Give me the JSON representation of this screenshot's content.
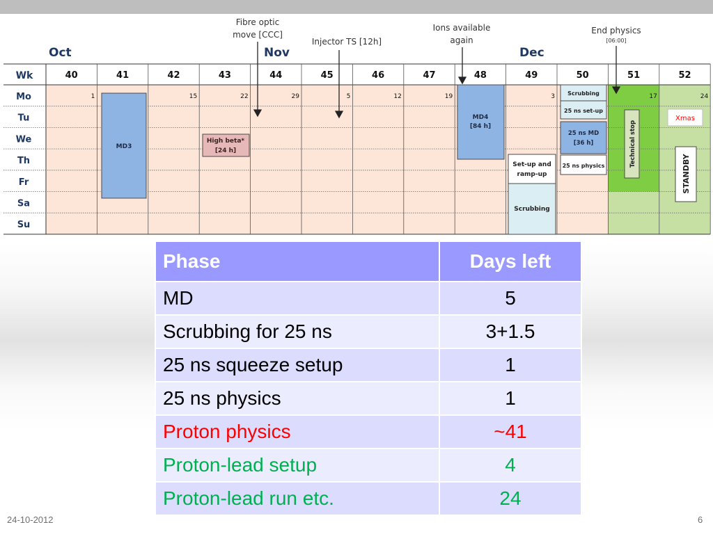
{
  "colors": {
    "week_cell": "#fde6d8",
    "dec_late_cell": "#c6e0a4",
    "technical_stop_cell": "#7fcd43",
    "md_block": "#8eb4e3",
    "high_beta_block": "#e6b9b8",
    "light_blue_block": "#dbeef4",
    "xmas": "#ff0000",
    "proton_physics": "#ff0000",
    "proton_lead": "#00b050",
    "table_header": "#9999ff"
  },
  "calendar": {
    "months": [
      "Oct",
      "Nov",
      "Dec"
    ],
    "wk_label": "Wk",
    "weeks": [
      "40",
      "41",
      "42",
      "43",
      "44",
      "45",
      "46",
      "47",
      "48",
      "49",
      "50",
      "51",
      "52"
    ],
    "days": [
      "Mo",
      "Tu",
      "We",
      "Th",
      "Fr",
      "Sa",
      "Su"
    ],
    "monday_dates": [
      "1",
      "",
      "15",
      "22",
      "29",
      "5",
      "12",
      "19",
      "",
      "3",
      "",
      "17",
      "24"
    ],
    "annotations": {
      "fibre_optic_line1": "Fibre optic",
      "fibre_optic_line2": "move [CCC]",
      "injector_ts": "Injector TS [12h]",
      "ions_line1": "Ions available",
      "ions_line2": "again",
      "end_physics": "End physics",
      "end_physics_time": "[06:00]"
    },
    "blocks": {
      "md3": "MD3",
      "high_beta_line1": "High beta*",
      "high_beta_line2": "[24 h]",
      "md4_line1": "MD4",
      "md4_line2": "[84 h]",
      "setup_ramp_line1": "Set-up and",
      "setup_ramp_line2": "ramp-up",
      "scrubbing_49": "Scrubbing",
      "scrubbing_50": "Scrubbing",
      "ns25_setup": "25 ns set-up",
      "ns25_md_line1": "25 ns MD",
      "ns25_md_line2": "[36  h]",
      "ns25_physics": "25 ns physics",
      "technical_stop": "Technical stop",
      "xmas": "Xmas",
      "standby": "STANDBY"
    }
  },
  "table": {
    "header_phase": "Phase",
    "header_days": "Days left",
    "rows": [
      {
        "phase": "MD",
        "days": "5",
        "color": "#000000"
      },
      {
        "phase": "Scrubbing for 25 ns",
        "days": "3+1.5",
        "color": "#000000"
      },
      {
        "phase": "25 ns squeeze setup",
        "days": "1",
        "color": "#000000"
      },
      {
        "phase": "25 ns physics",
        "days": "1",
        "color": "#000000"
      },
      {
        "phase": "Proton physics",
        "days": "~41",
        "color": "#ff0000"
      },
      {
        "phase": "Proton-lead setup",
        "days": "4",
        "color": "#00b050"
      },
      {
        "phase": "Proton-lead run etc.",
        "days": "24",
        "color": "#00b050"
      }
    ]
  },
  "footer": {
    "date": "24-10-2012",
    "page": "6"
  }
}
